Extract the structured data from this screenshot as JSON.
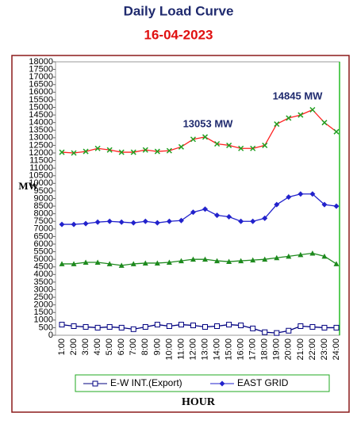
{
  "chart_data": {
    "type": "line",
    "title": "Daily Load Curve",
    "subtitle": "16-04-2023",
    "y_label": "MW",
    "x_label": "HOUR",
    "annotations": [
      "13053 MW",
      "14845 MW"
    ],
    "categories": [
      "1:00",
      "2:00",
      "3:00",
      "4:00",
      "5:00",
      "6:00",
      "7:00",
      "8:00",
      "9:00",
      "10:00",
      "11:00",
      "12:00",
      "13:00",
      "14:00",
      "15:00",
      "16:00",
      "17:00",
      "18:00",
      "19:00",
      "20:00",
      "21:00",
      "22:00",
      "23:00",
      "24:00"
    ],
    "ylim": [
      0,
      18000
    ],
    "yticks": [
      0,
      500,
      1000,
      1500,
      2000,
      2500,
      3000,
      3500,
      4000,
      4500,
      5000,
      5500,
      6000,
      6500,
      7000,
      7500,
      8000,
      8500,
      9000,
      9500,
      10000,
      10500,
      11000,
      11500,
      12000,
      12500,
      13000,
      13500,
      14000,
      14500,
      15000,
      15500,
      16000,
      16500,
      17000,
      17500,
      18000
    ],
    "series": [
      {
        "name": "E-W INT.(Export)",
        "color": "#000080",
        "marker": "square",
        "values": [
          700,
          600,
          550,
          500,
          550,
          500,
          400,
          550,
          700,
          600,
          700,
          650,
          550,
          600,
          700,
          650,
          450,
          200,
          150,
          300,
          600,
          550,
          500,
          500
        ]
      },
      {
        "name": "EAST GRID",
        "color": "#2222cc",
        "marker": "diamond",
        "values": [
          7300,
          7300,
          7350,
          7450,
          7500,
          7450,
          7400,
          7500,
          7400,
          7500,
          7550,
          8100,
          8300,
          7900,
          7800,
          7500,
          7500,
          7700,
          8600,
          9100,
          9300,
          9300,
          8600,
          8500
        ]
      },
      {
        "color": "#ff2020",
        "marker_color": "#22a022",
        "marker": "x",
        "values": [
          12050,
          12000,
          12100,
          12300,
          12200,
          12050,
          12050,
          12200,
          12100,
          12150,
          12400,
          12900,
          13053,
          12600,
          12500,
          12300,
          12300,
          12500,
          13900,
          14300,
          14500,
          14845,
          14000,
          13400
        ]
      },
      {
        "color": "#1e8a1e",
        "marker": "triangle",
        "values": [
          4700,
          4700,
          4800,
          4800,
          4700,
          4600,
          4700,
          4750,
          4750,
          4800,
          4900,
          5000,
          5000,
          4900,
          4850,
          4900,
          4950,
          5000,
          5100,
          5200,
          5300,
          5400,
          5200,
          4700
        ]
      }
    ]
  }
}
